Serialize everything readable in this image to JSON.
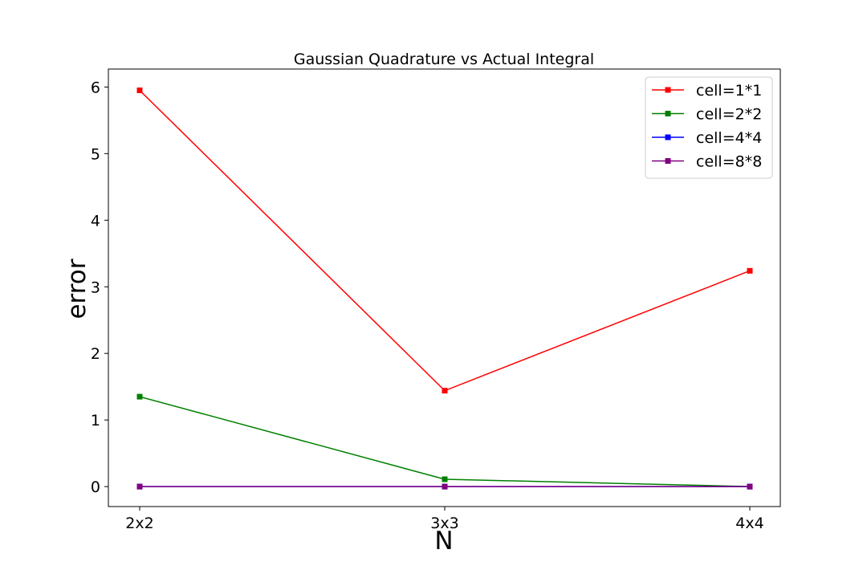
{
  "chart_data": {
    "type": "line",
    "title": "Gaussian Quadrature vs Actual Integral",
    "xlabel": "N",
    "ylabel": "error",
    "categories": [
      "2x2",
      "3x3",
      "4x4"
    ],
    "ylim": [
      -0.3,
      6.27
    ],
    "yticks": [
      0,
      1,
      2,
      3,
      4,
      5,
      6
    ],
    "grid": false,
    "legend_position": "top-right",
    "marker": "square",
    "series": [
      {
        "name": "cell=1*1",
        "color": "#ff0000",
        "values": [
          5.95,
          1.44,
          3.24
        ]
      },
      {
        "name": "cell=2*2",
        "color": "#008000",
        "values": [
          1.35,
          0.11,
          0.0
        ]
      },
      {
        "name": "cell=4*4",
        "color": "#0000ff",
        "values": [
          0.0,
          0.0,
          0.0
        ]
      },
      {
        "name": "cell=8*8",
        "color": "#800080",
        "values": [
          0.0,
          0.0,
          0.0
        ]
      }
    ]
  }
}
